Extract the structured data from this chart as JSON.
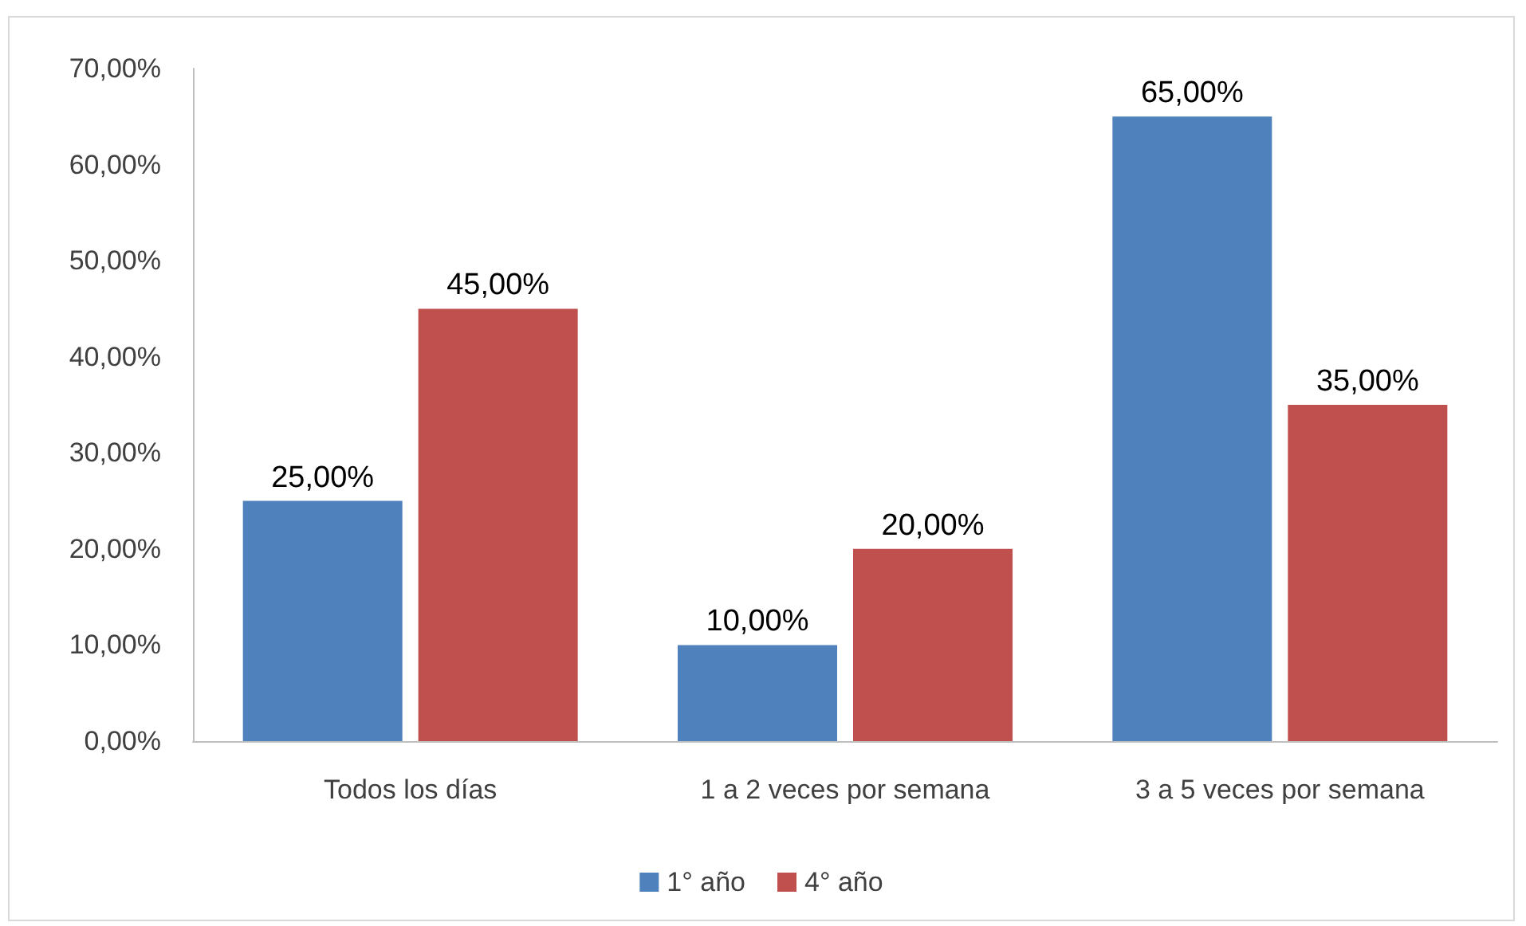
{
  "chart_data": {
    "type": "bar",
    "categories": [
      "Todos los días",
      "1 a 2 veces por semana",
      "3 a 5 veces por semana"
    ],
    "series": [
      {
        "name": "1° año",
        "color": "#4f81bd",
        "values": [
          25,
          10,
          65
        ],
        "value_labels": [
          "25,00%",
          "10,00%",
          "65,00%"
        ]
      },
      {
        "name": "4° año",
        "color": "#c0504d",
        "values": [
          45,
          20,
          35
        ],
        "value_labels": [
          "45,00%",
          "20,00%",
          "35,00%"
        ]
      }
    ],
    "ylim": [
      0,
      70
    ],
    "yticks": [
      {
        "value": 0,
        "label": "0,00%"
      },
      {
        "value": 10,
        "label": "10,00%"
      },
      {
        "value": 20,
        "label": "20,00%"
      },
      {
        "value": 30,
        "label": "30,00%"
      },
      {
        "value": 40,
        "label": "40,00%"
      },
      {
        "value": 50,
        "label": "50,00%"
      },
      {
        "value": 60,
        "label": "60,00%"
      },
      {
        "value": 70,
        "label": "70,00%"
      }
    ],
    "grid": false,
    "legend": "bottom"
  }
}
